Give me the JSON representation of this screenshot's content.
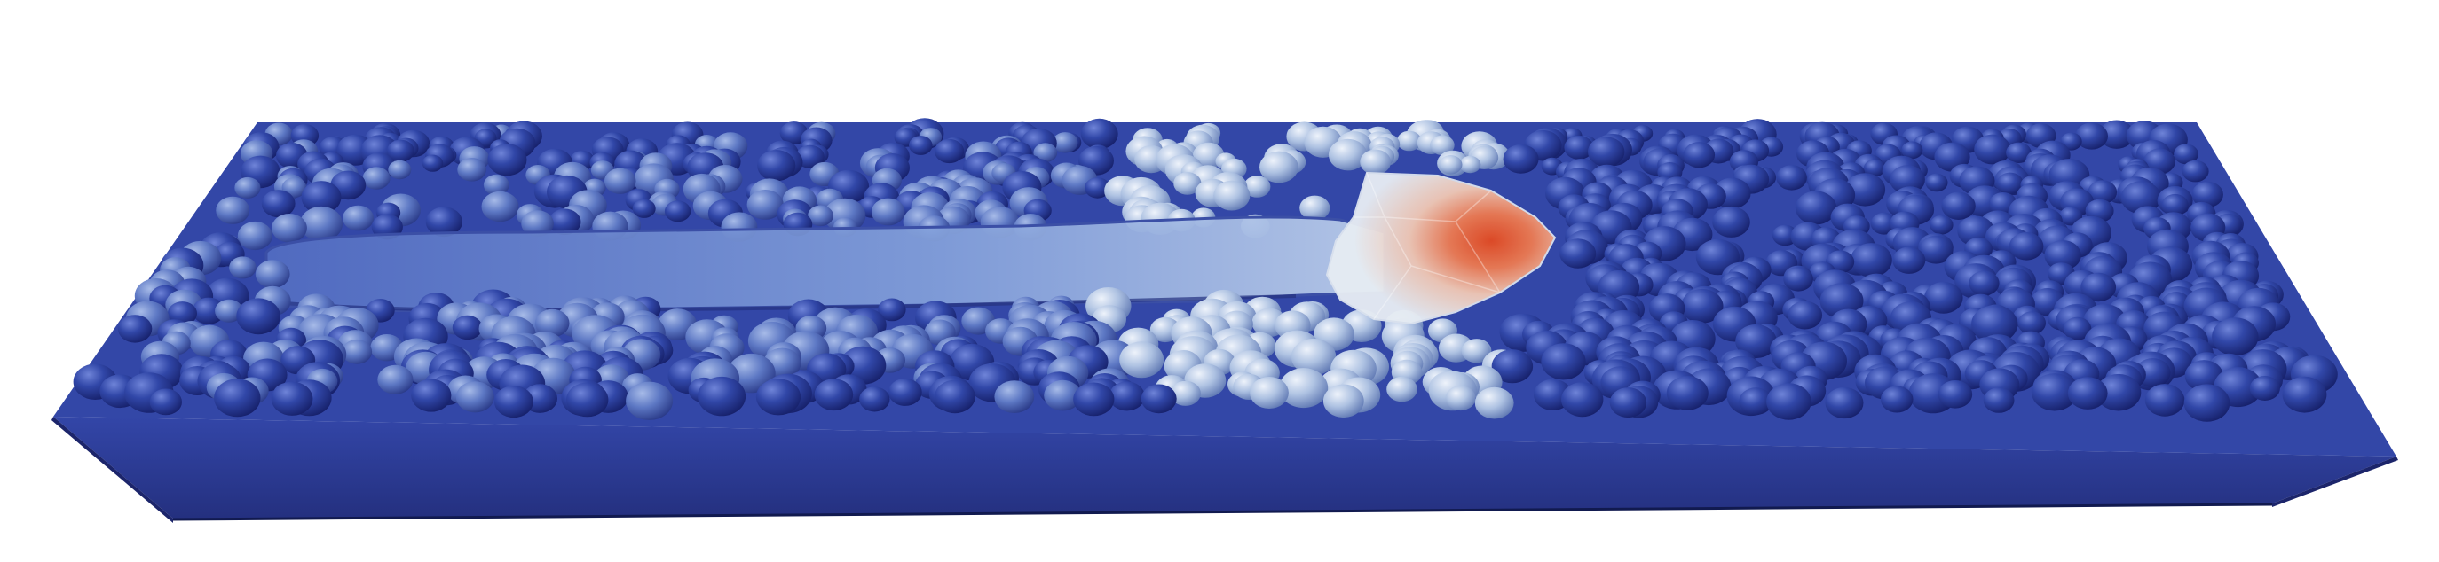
{
  "scene": {
    "subject": "powder-bed-with-melt-pool",
    "colors": {
      "background": "#ffffff",
      "plate_top": "#3346a6",
      "plate_front": "#2d3d99",
      "plate_side": "#1f2a70",
      "plate_bottom_edge": "#131a52",
      "particle_cold": "#2b3f9f",
      "particle_warm": "#b9cde6",
      "melt_track": "#8aa6dc",
      "melt_pool_hot": "#e2502a",
      "melt_pool_warm": "#f0b59a",
      "melt_pool_rim": "#e6ecf3"
    }
  }
}
